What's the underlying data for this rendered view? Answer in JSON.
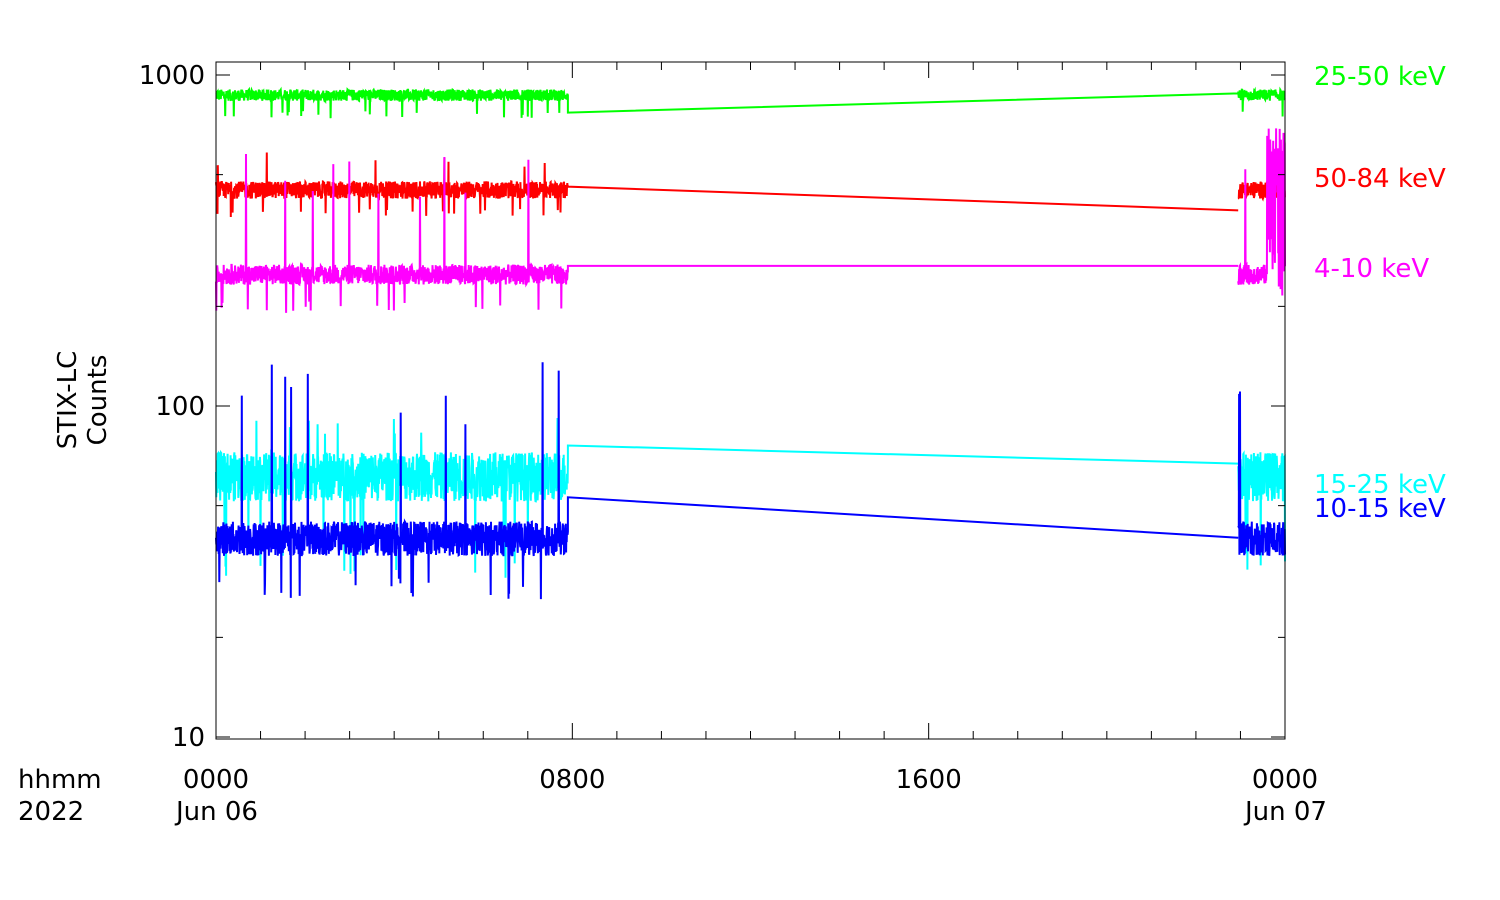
{
  "chart_data": {
    "type": "line",
    "ylabel": [
      "STIX-LC",
      "Counts"
    ],
    "yscale": "log",
    "ylim": [
      10,
      1000
    ],
    "y_ticks": [
      {
        "value": 10,
        "label": "10"
      },
      {
        "value": 100,
        "label": "100"
      },
      {
        "value": 1000,
        "label": "1000"
      }
    ],
    "xlim_hours": [
      0,
      24
    ],
    "x_ticks": [
      {
        "value": 0,
        "top": "0000",
        "bottom": "Jun 06"
      },
      {
        "value": 8,
        "top": "0800",
        "bottom": ""
      },
      {
        "value": 16,
        "top": "1600",
        "bottom": ""
      },
      {
        "value": 24,
        "top": "0000",
        "bottom": "Jun 07"
      }
    ],
    "x_axis_left_labels": {
      "top": "hhmm",
      "bottom": "2022"
    },
    "data_segments_hours": [
      [
        0,
        7.9
      ],
      [
        22.95,
        24
      ]
    ],
    "series": [
      {
        "name": "25-50 keV",
        "color": "#00ff00",
        "level": 870,
        "spread": 0.04,
        "dip": 740,
        "spike": 880,
        "gap_start": 770,
        "gap_end": 880,
        "noisy_end": false
      },
      {
        "name": "50-84 keV",
        "color": "#ff0000",
        "level": 450,
        "spread": 0.06,
        "dip": 370,
        "spike": 600,
        "gap_start": 460,
        "gap_end": 390,
        "noisy_end": false
      },
      {
        "name": "4-10 keV",
        "color": "#ff00ff",
        "level": 250,
        "spread": 0.07,
        "dip": 190,
        "spike": 600,
        "gap_start": 265,
        "gap_end": 265,
        "noisy_end": true
      },
      {
        "name": "15-25 keV",
        "color": "#00ffff",
        "level": 62,
        "spread": 0.17,
        "dip": 30,
        "spike": 93,
        "gap_start": 76,
        "gap_end": 67,
        "noisy_end": false
      },
      {
        "name": "10-15 keV",
        "color": "#0000ff",
        "level": 40,
        "spread": 0.12,
        "dip": 26,
        "spike": 136,
        "gap_start": 53,
        "gap_end": 40,
        "noisy_end": false
      }
    ]
  }
}
